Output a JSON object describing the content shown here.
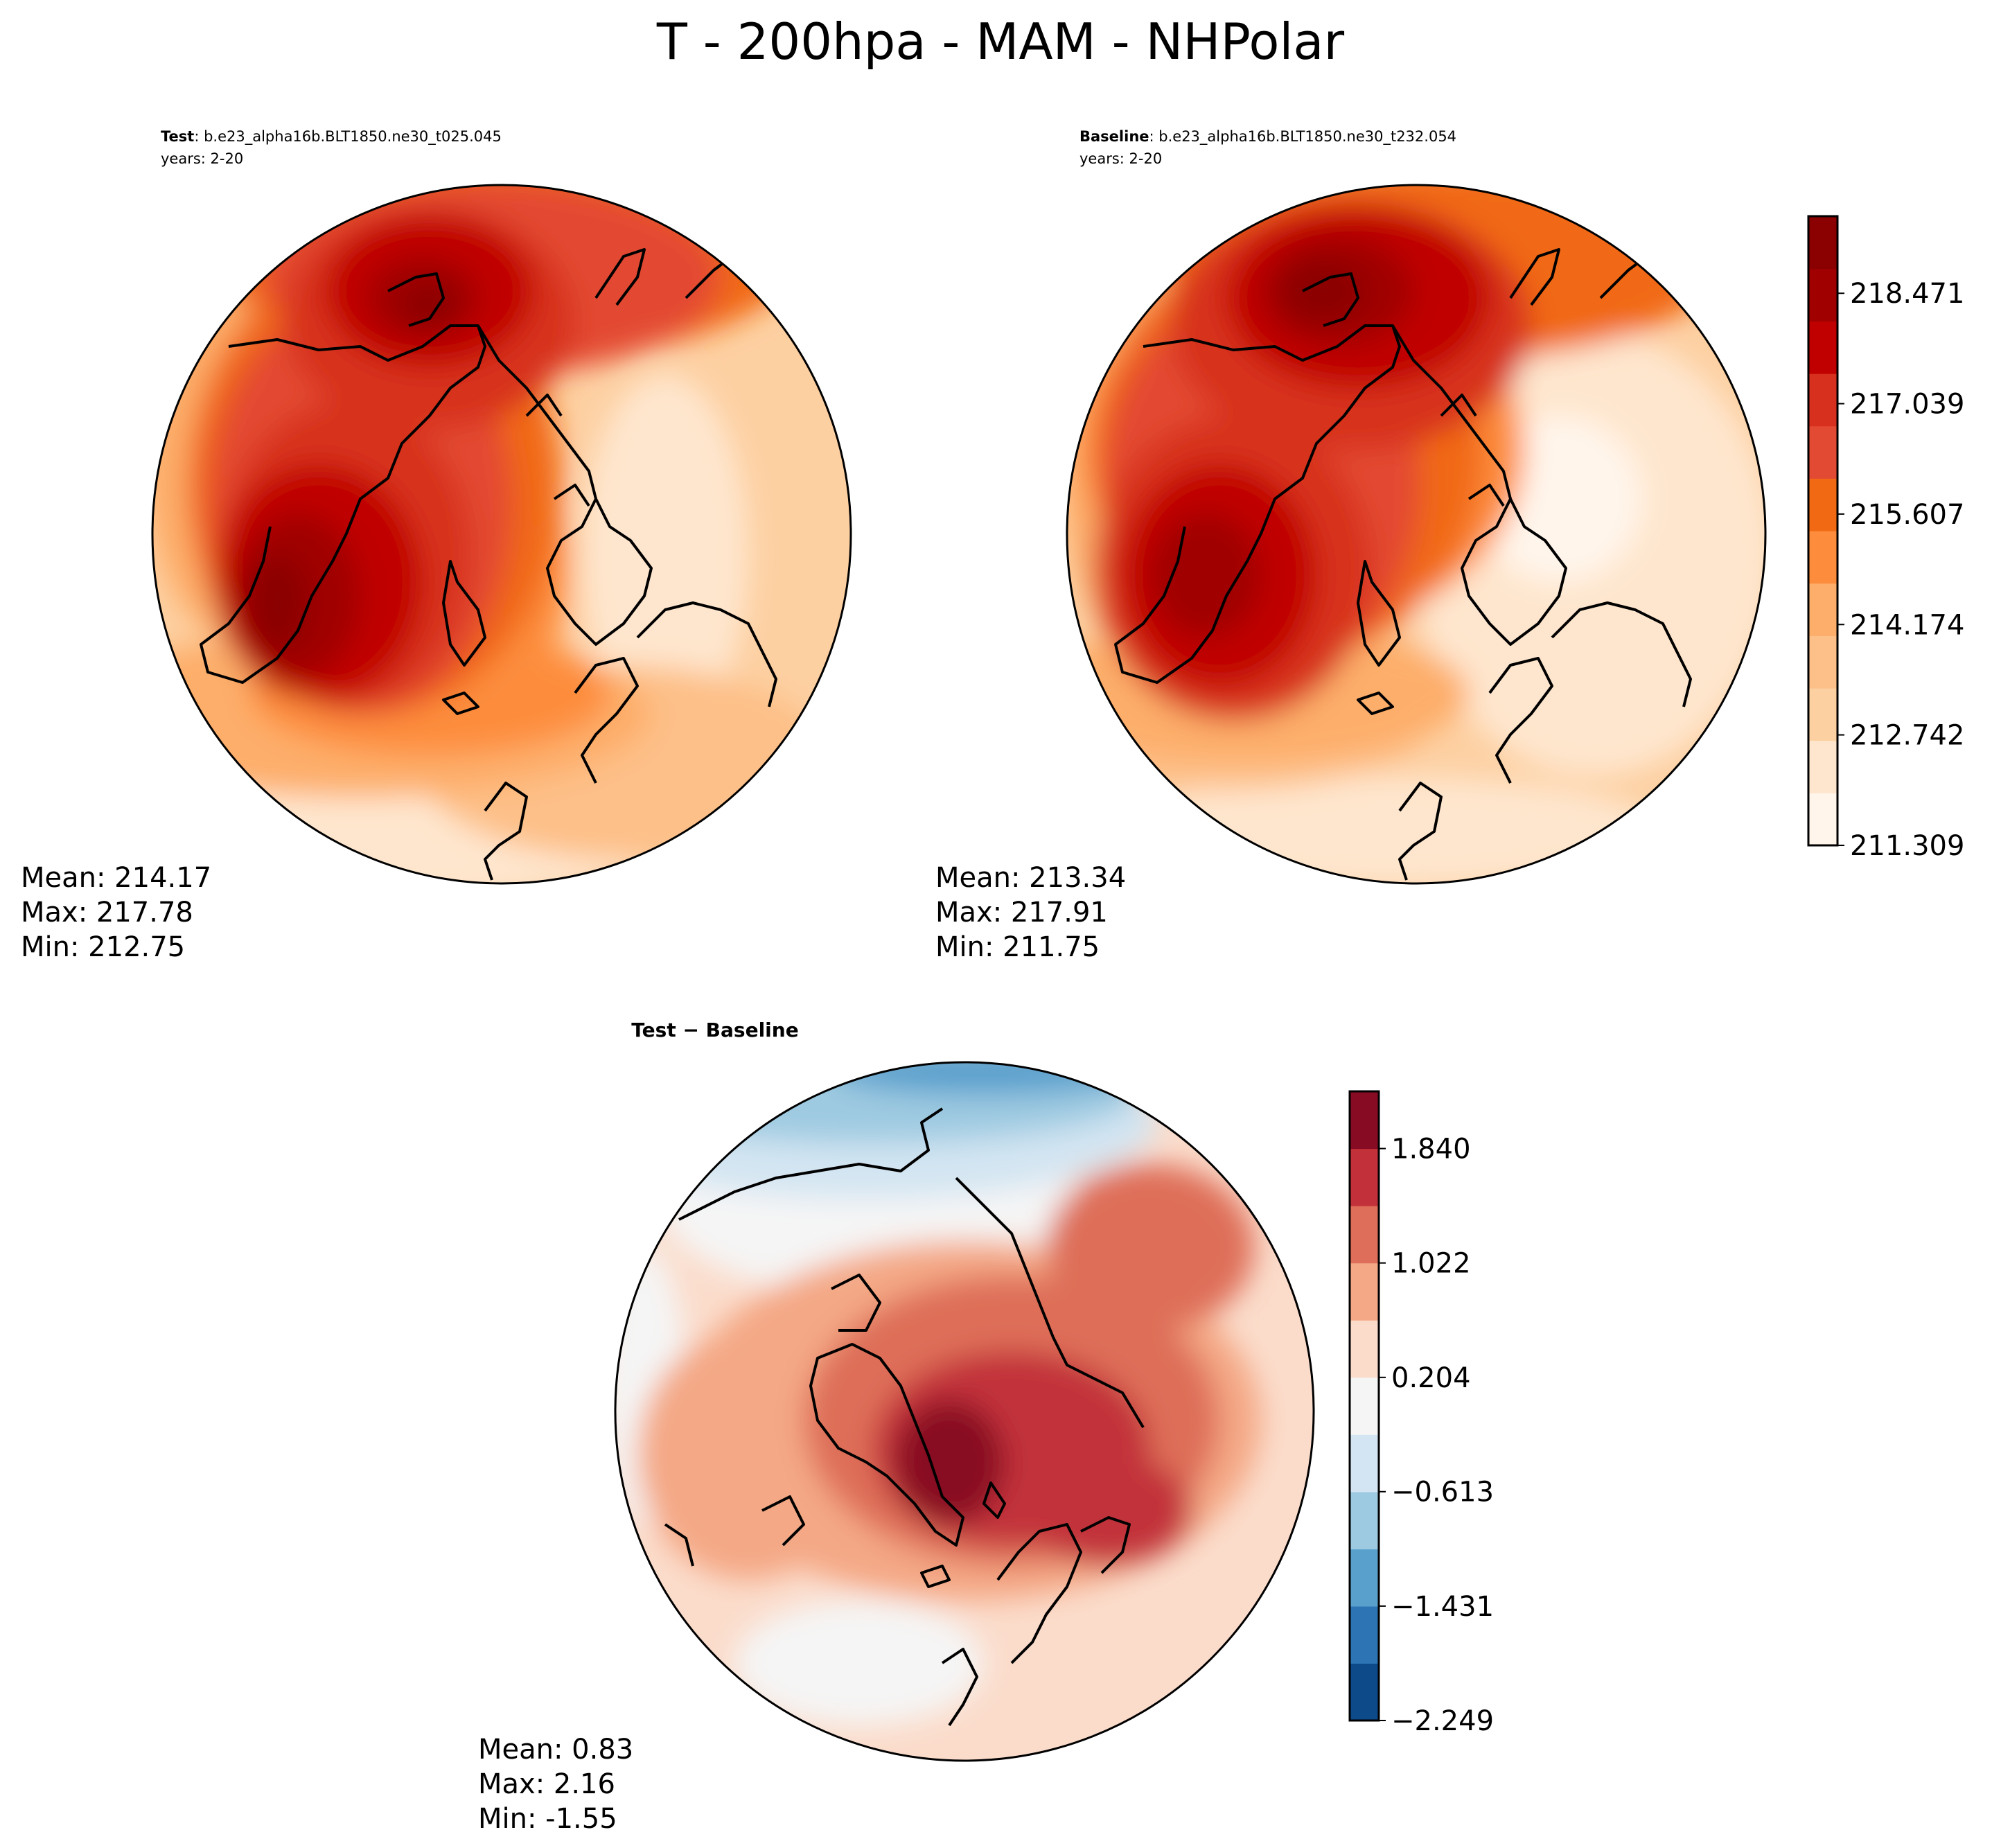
{
  "title": "T - 200hpa - MAM - NHPolar",
  "colors": {
    "seq": [
      "#fff5eb",
      "#fee6ce",
      "#fdd0a2",
      "#fdc088",
      "#fdae6b",
      "#fd8d3c",
      "#f16913",
      "#e34a33",
      "#d7301f",
      "#c00000",
      "#a00000",
      "#8b0000"
    ],
    "div": [
      "#0c4a8a",
      "#2c74b4",
      "#5aa0cd",
      "#9ecae1",
      "#d3e5f2",
      "#f5f5f5",
      "#fbdccb",
      "#f4a885",
      "#de6e59",
      "#c2303a",
      "#880b24"
    ],
    "coast": "#000000"
  },
  "panels": {
    "test": {
      "label_bold": "Test",
      "label_text": ": b.e23_alpha16b.BLT1850.ne30_t025.045",
      "years": "years: 2-20",
      "mean": "Mean: 214.17",
      "max": "Max: 217.78",
      "min": "Min: 212.75"
    },
    "baseline": {
      "label_bold": "Baseline",
      "label_text": ": b.e23_alpha16b.BLT1850.ne30_t232.054",
      "years": "years: 2-20",
      "mean": "Mean: 213.34",
      "max": "Max: 217.91",
      "min": "Min: 211.75"
    },
    "diff": {
      "title": "Test − Baseline",
      "mean": "Mean:  0.83",
      "max": "Max:  2.16",
      "min": "Min: -1.55"
    }
  },
  "colorbars": {
    "main": {
      "ticks": [
        "218.471",
        "217.039",
        "215.607",
        "214.174",
        "212.742",
        "211.309"
      ]
    },
    "diff": {
      "ticks": [
        "1.840",
        "1.022",
        "0.204",
        "−0.613",
        "−1.431",
        "−2.249"
      ]
    }
  },
  "chart_data": [
    {
      "type": "heatmap",
      "name": "Test",
      "projection": "north polar stereographic",
      "variable": "T",
      "level": "200hpa",
      "season": "MAM",
      "stats": {
        "mean": 214.17,
        "max": 217.78,
        "min": 212.75
      },
      "colorbar": {
        "range": [
          211.309,
          219.471
        ],
        "ticks": [
          211.309,
          212.742,
          214.174,
          215.607,
          217.039,
          218.471
        ],
        "cmap": "OrRd"
      }
    },
    {
      "type": "heatmap",
      "name": "Baseline",
      "projection": "north polar stereographic",
      "stats": {
        "mean": 213.34,
        "max": 217.91,
        "min": 211.75
      },
      "colorbar": {
        "range": [
          211.309,
          219.471
        ],
        "ticks": [
          211.309,
          212.742,
          214.174,
          215.607,
          217.039,
          218.471
        ],
        "cmap": "OrRd"
      }
    },
    {
      "type": "heatmap",
      "name": "Test - Baseline",
      "projection": "north polar stereographic",
      "stats": {
        "mean": 0.83,
        "max": 2.16,
        "min": -1.55
      },
      "colorbar": {
        "range": [
          -2.249,
          2.249
        ],
        "ticks": [
          -2.249,
          -1.431,
          -0.613,
          0.204,
          1.022,
          1.84
        ],
        "cmap": "RdBu_r"
      }
    }
  ]
}
